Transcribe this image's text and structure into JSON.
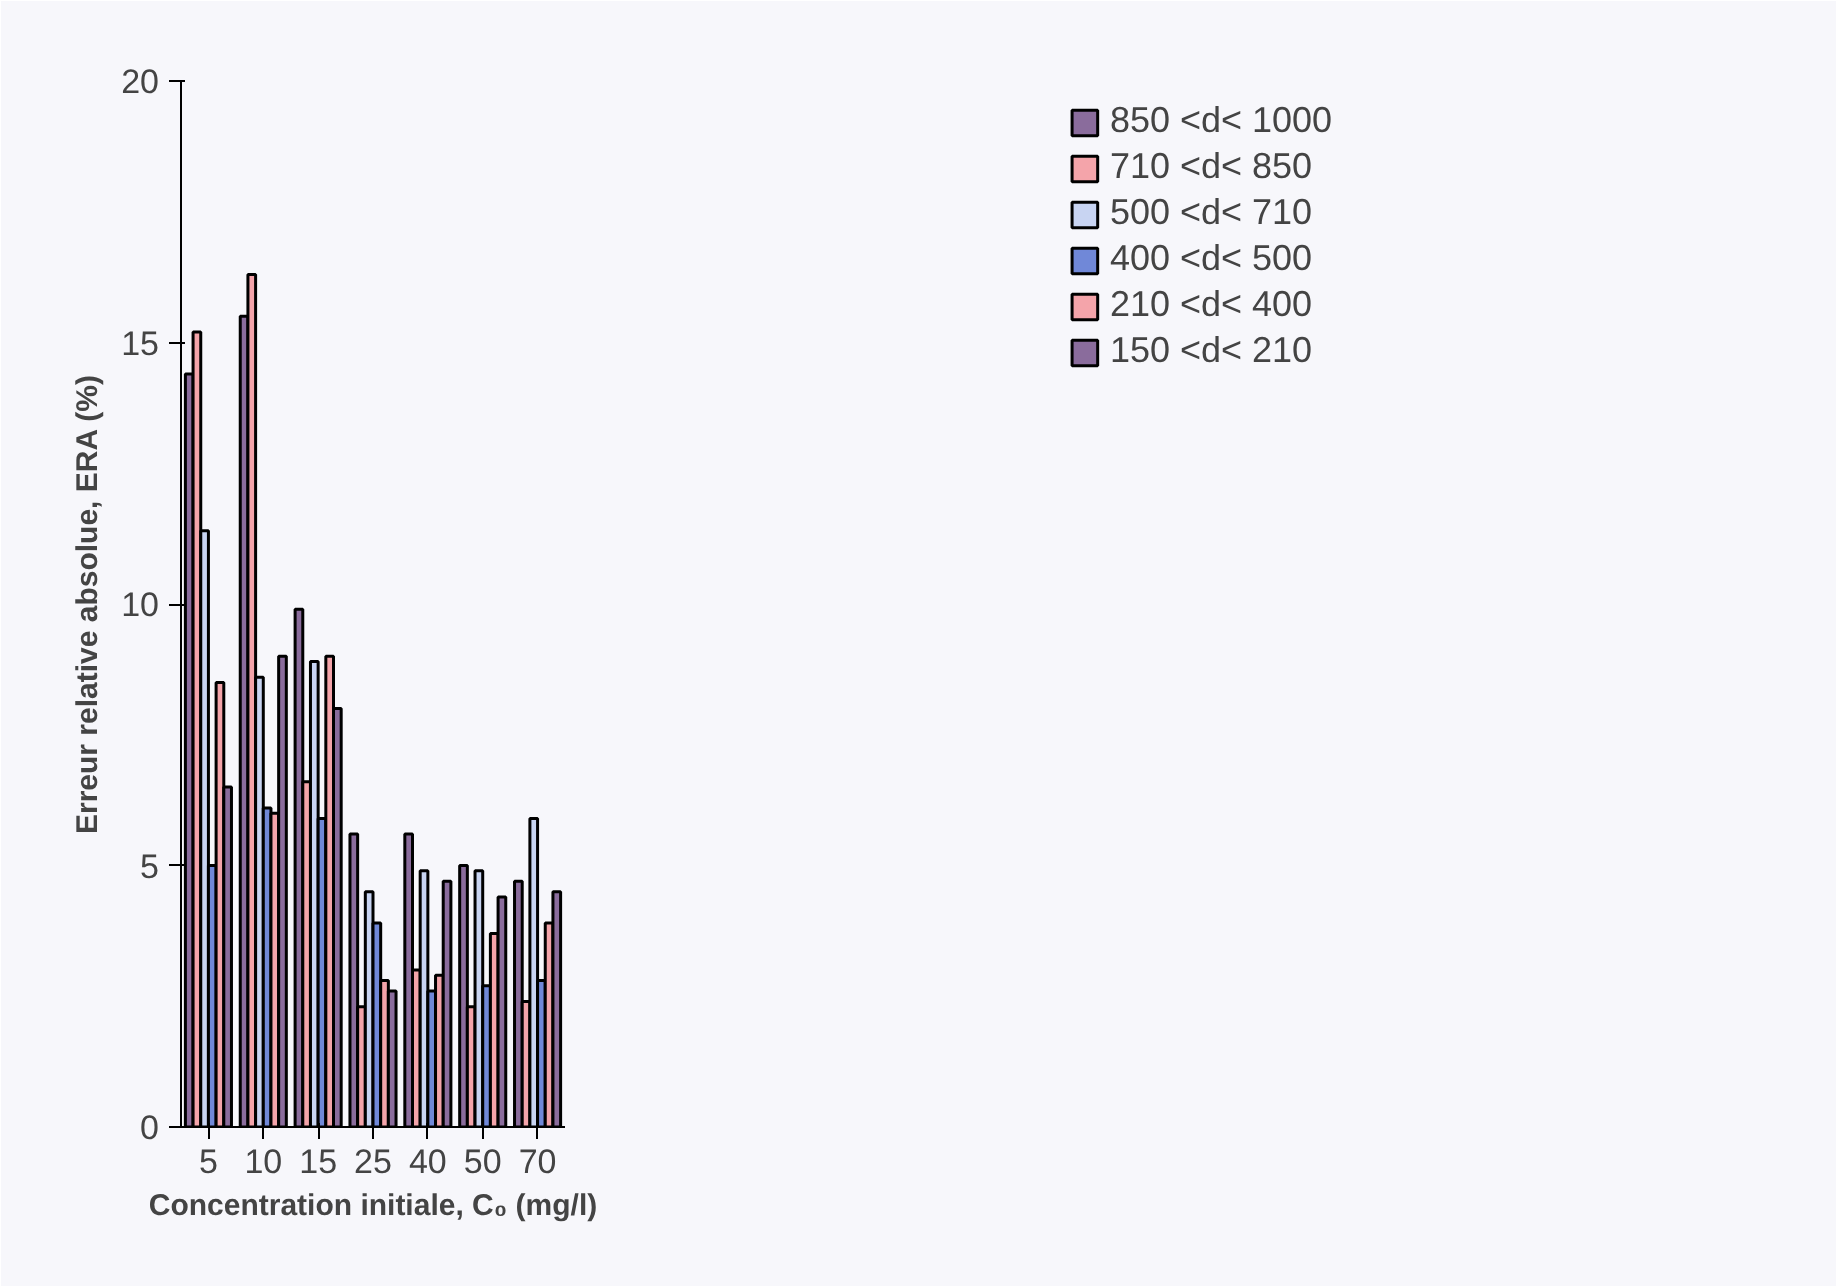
{
  "chart_data": {
    "type": "bar",
    "xlabel": "Concentration initiale, C₀ (mg/l)",
    "ylabel": "Erreur relative absolue, ERA (%)",
    "categories": [
      "5",
      "10",
      "15",
      "25",
      "40",
      "50",
      "70"
    ],
    "series": [
      {
        "name": "850 <d< 1000",
        "color": "#8a6c9c",
        "values": [
          14.4,
          15.5,
          9.9,
          5.6,
          5.6,
          5.0,
          4.7
        ]
      },
      {
        "name": "710 <d< 850",
        "color": "#f4a4aa",
        "values": [
          15.2,
          16.3,
          6.6,
          2.3,
          3.0,
          2.3,
          2.4
        ]
      },
      {
        "name": "500 <d< 710",
        "color": "#c8d4f2",
        "values": [
          11.4,
          8.6,
          8.9,
          4.5,
          4.9,
          4.9,
          5.9
        ]
      },
      {
        "name": "400 <d< 500",
        "color": "#7088d8",
        "values": [
          5.0,
          6.1,
          5.9,
          3.9,
          2.6,
          2.7,
          2.8
        ]
      },
      {
        "name": "210 <d< 400",
        "color": "#f4a4aa",
        "values": [
          8.5,
          6.0,
          9.0,
          2.8,
          2.9,
          3.7,
          3.9
        ]
      },
      {
        "name": "150 <d< 210",
        "color": "#8a6c9c",
        "values": [
          6.5,
          9.0,
          8.0,
          2.6,
          4.7,
          4.4,
          4.5
        ]
      }
    ],
    "ylim": [
      0,
      20
    ],
    "yticks": [
      0,
      5,
      10,
      15,
      20
    ],
    "grid": false,
    "legend": "top right"
  }
}
